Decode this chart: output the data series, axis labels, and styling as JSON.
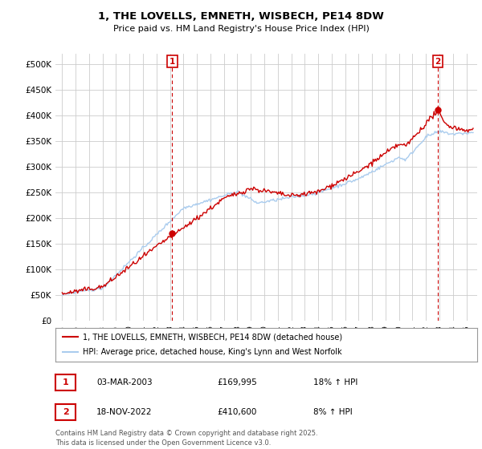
{
  "title": "1, THE LOVELLS, EMNETH, WISBECH, PE14 8DW",
  "subtitle": "Price paid vs. HM Land Registry's House Price Index (HPI)",
  "legend_line1": "1, THE LOVELLS, EMNETH, WISBECH, PE14 8DW (detached house)",
  "legend_line2": "HPI: Average price, detached house, King's Lynn and West Norfolk",
  "annotation1_label": "1",
  "annotation1_date": "03-MAR-2003",
  "annotation1_price": "£169,995",
  "annotation1_hpi": "18% ↑ HPI",
  "annotation1_year": 2003.17,
  "annotation1_value": 169995,
  "annotation2_label": "2",
  "annotation2_date": "18-NOV-2022",
  "annotation2_price": "£410,600",
  "annotation2_hpi": "8% ↑ HPI",
  "annotation2_year": 2022.88,
  "annotation2_value": 410600,
  "footer": "Contains HM Land Registry data © Crown copyright and database right 2025.\nThis data is licensed under the Open Government Licence v3.0.",
  "ylim": [
    0,
    520000
  ],
  "xlim_start": 1994.5,
  "xlim_end": 2025.8,
  "red_color": "#cc0000",
  "blue_color": "#aaccee",
  "annotation_box_color": "#cc0000",
  "grid_color": "#cccccc",
  "background_color": "#ffffff"
}
